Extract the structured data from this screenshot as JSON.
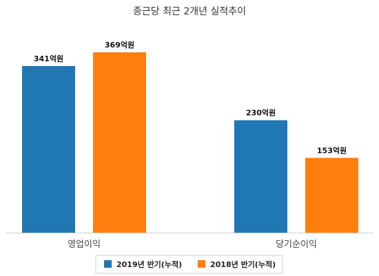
{
  "chart_data": {
    "type": "bar",
    "title": "종근당 최근 2개년 실적추이",
    "categories": [
      "영업이익",
      "당기순이익"
    ],
    "series": [
      {
        "name": "2019년 반기(누적)",
        "color": "#1f77b4",
        "values": [
          341,
          230
        ],
        "labels": [
          "341억원",
          "230억원"
        ]
      },
      {
        "name": "2018년 반기(누적)",
        "color": "#ff7f0e",
        "values": [
          369,
          153
        ],
        "labels": [
          "369억원",
          "153억원"
        ]
      }
    ],
    "ylim": [
      0,
      400
    ],
    "grid": false,
    "legend_position": "bottom-center"
  }
}
